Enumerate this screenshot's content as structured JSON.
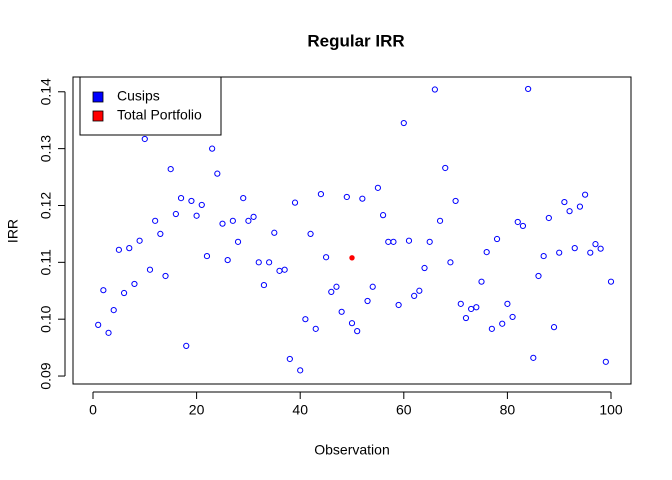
{
  "chart_data": {
    "type": "scatter",
    "title": "Regular IRR",
    "xlabel": "Observation",
    "ylabel": "IRR",
    "xlim": [
      -3.86,
      103.86
    ],
    "ylim": [
      0.0886,
      0.1426
    ],
    "xticks": [
      0,
      20,
      40,
      60,
      80,
      100
    ],
    "yticks": [
      0.09,
      {
        "value": 0.1,
        "label": "0.10"
      },
      0.11,
      0.12,
      0.13,
      0.14
    ],
    "legend": "topleft",
    "series": [
      {
        "name": "Cusips",
        "color": "#0000ff",
        "marker": "open",
        "x": [
          1,
          2,
          3,
          4,
          5,
          6,
          7,
          8,
          9,
          10,
          11,
          12,
          13,
          14,
          15,
          16,
          17,
          18,
          19,
          20,
          21,
          22,
          23,
          24,
          25,
          26,
          27,
          28,
          29,
          30,
          31,
          32,
          33,
          34,
          35,
          36,
          37,
          38,
          39,
          40,
          41,
          42,
          43,
          44,
          45,
          46,
          47,
          48,
          49,
          50,
          51,
          52,
          53,
          54,
          55,
          56,
          57,
          58,
          59,
          60,
          61,
          62,
          63,
          64,
          65,
          66,
          67,
          68,
          69,
          70,
          71,
          72,
          73,
          74,
          75,
          76,
          77,
          78,
          79,
          80,
          81,
          82,
          83,
          84,
          85,
          86,
          87,
          88,
          89,
          90,
          91,
          92,
          93,
          94,
          95,
          96,
          97,
          98,
          99,
          100
        ],
        "values": [
          0.099,
          0.1051,
          0.0976,
          0.1016,
          0.1122,
          0.1046,
          0.1125,
          0.1062,
          0.1138,
          0.1317,
          0.1087,
          0.1173,
          0.115,
          0.1076,
          0.1264,
          0.1185,
          0.1213,
          0.0953,
          0.1208,
          0.1182,
          0.1201,
          0.1111,
          0.13,
          0.1256,
          0.1168,
          0.1104,
          0.1173,
          0.1136,
          0.1213,
          0.1173,
          0.118,
          0.11,
          0.106,
          0.11,
          0.1152,
          0.1085,
          0.1087,
          0.093,
          0.1205,
          0.091,
          0.1,
          0.115,
          0.0983,
          0.122,
          0.1109,
          0.1048,
          0.1057,
          0.1013,
          0.1215,
          0.0993,
          0.0979,
          0.1212,
          0.1032,
          0.1057,
          0.1231,
          0.1183,
          0.1136,
          0.1136,
          0.1025,
          0.1345,
          0.1138,
          0.1041,
          0.105,
          0.109,
          0.1136,
          0.1404,
          0.1173,
          0.1266,
          0.11,
          0.1208,
          0.1027,
          0.1002,
          0.1018,
          0.1021,
          0.1066,
          0.1118,
          0.0983,
          0.1141,
          0.0992,
          0.1027,
          0.1004,
          0.1171,
          0.1164,
          0.1405,
          0.0932,
          0.1076,
          0.1111,
          0.1178,
          0.0986,
          0.1117,
          0.1206,
          0.119,
          0.1125,
          0.1198,
          0.1219,
          0.1117,
          0.1132,
          0.1124,
          0.0925,
          0.1066
        ]
      },
      {
        "name": "Total Portfolio",
        "color": "#ff0000",
        "marker": "filled",
        "x": [
          50
        ],
        "values": [
          0.1108
        ]
      }
    ]
  }
}
